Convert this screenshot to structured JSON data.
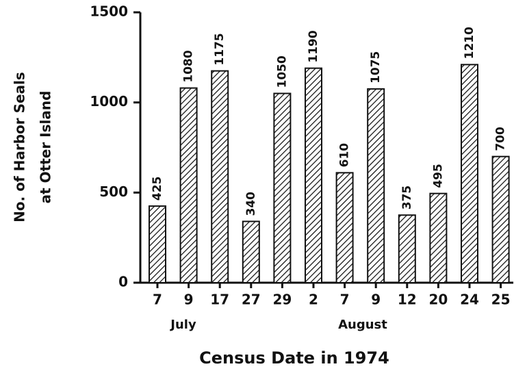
{
  "chart_data": {
    "type": "bar",
    "x_label": "Census Date in 1974",
    "y_label": [
      "No. of Harbor Seals",
      "at Otter Island"
    ],
    "categories": [
      "7",
      "9",
      "17",
      "27",
      "29",
      "2",
      "7",
      "9",
      "12",
      "20",
      "24",
      "25"
    ],
    "group_labels": [
      "July",
      "August"
    ],
    "values": [
      425,
      1080,
      1175,
      340,
      1050,
      1190,
      610,
      1075,
      375,
      495,
      1210,
      700
    ],
    "color": "#111111",
    "ylim": [
      0,
      1500
    ],
    "yticks": [
      0,
      500,
      1000,
      1500
    ],
    "grid": false
  }
}
